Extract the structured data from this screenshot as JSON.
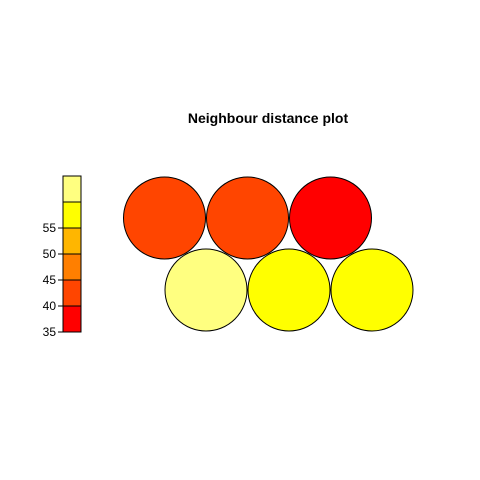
{
  "chart_data": {
    "type": "heatmap",
    "subtype": "som-hexagonal-neighbour-distance",
    "title": "Neighbour distance plot",
    "scale": {
      "ticks": [
        35,
        40,
        45,
        50,
        55
      ],
      "bins": [
        {
          "from": 35,
          "to": 40,
          "color": "#FF0000"
        },
        {
          "from": 40,
          "to": 45,
          "color": "#FF4500"
        },
        {
          "from": 45,
          "to": 50,
          "color": "#FF7F00"
        },
        {
          "from": 50,
          "to": 55,
          "color": "#FFB600"
        },
        {
          "from": 55,
          "to": 60,
          "color": "#FFFF00"
        },
        {
          "from": 60,
          "to": 65,
          "color": "#FFFF80"
        }
      ],
      "ylim": [
        35,
        65
      ]
    },
    "grid": {
      "rows": 2,
      "cols": 3,
      "topology": "hexagonal"
    },
    "units": [
      {
        "row": 1,
        "col": 1,
        "value": 62,
        "color": "#FFFF80"
      },
      {
        "row": 1,
        "col": 2,
        "value": 57,
        "color": "#FFFF00"
      },
      {
        "row": 1,
        "col": 3,
        "value": 57,
        "color": "#FFFF00"
      },
      {
        "row": 2,
        "col": 1,
        "value": 42,
        "color": "#FF4500"
      },
      {
        "row": 2,
        "col": 2,
        "value": 42,
        "color": "#FF4500"
      },
      {
        "row": 2,
        "col": 3,
        "value": 37,
        "color": "#FF0000"
      }
    ]
  }
}
